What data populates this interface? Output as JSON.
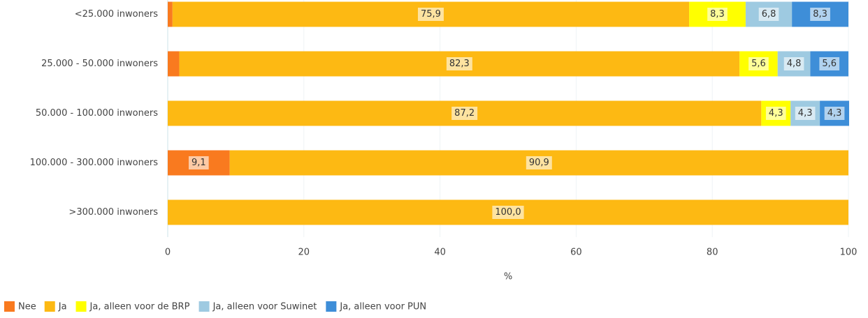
{
  "chart_data": {
    "type": "stacked-bar-horizontal",
    "categories": [
      "<25.000 inwoners",
      "25.000 - 50.000 inwoners",
      "50.000 - 100.000 inwoners",
      "100.000 - 300.000 inwoners",
      ">300.000 inwoners"
    ],
    "series": [
      {
        "name": "Nee",
        "color": "#f97a1f",
        "values": [
          0.7,
          1.7,
          null,
          9.1,
          null
        ],
        "value_labels": [
          null,
          null,
          null,
          "9,1",
          null
        ]
      },
      {
        "name": "Ja",
        "color": "#fdb913",
        "values": [
          75.9,
          82.3,
          87.2,
          90.9,
          100.0
        ],
        "value_labels": [
          "75,9",
          "82,3",
          "87,2",
          "90,9",
          "100,0"
        ]
      },
      {
        "name": "Ja, alleen voor de BRP",
        "color": "#ffff00",
        "values": [
          8.3,
          5.6,
          4.3,
          null,
          null
        ],
        "value_labels": [
          "8,3",
          "5,6",
          "4,3",
          null,
          null
        ]
      },
      {
        "name": "Ja, alleen voor Suwinet",
        "color": "#9ecae1",
        "values": [
          6.8,
          4.8,
          4.3,
          null,
          null
        ],
        "value_labels": [
          "6,8",
          "4,8",
          "4,3",
          null,
          null
        ]
      },
      {
        "name": "Ja, alleen voor PUN",
        "color": "#3e8ed8",
        "values": [
          8.3,
          5.6,
          4.3,
          null,
          null
        ],
        "value_labels": [
          "8,3",
          "5,6",
          "4,3",
          null,
          null
        ]
      }
    ],
    "xlabel": "%",
    "xlim": [
      0,
      100
    ],
    "xticks": [
      0,
      20,
      40,
      60,
      80,
      100
    ],
    "grid": true,
    "legend": "bottom-left"
  }
}
